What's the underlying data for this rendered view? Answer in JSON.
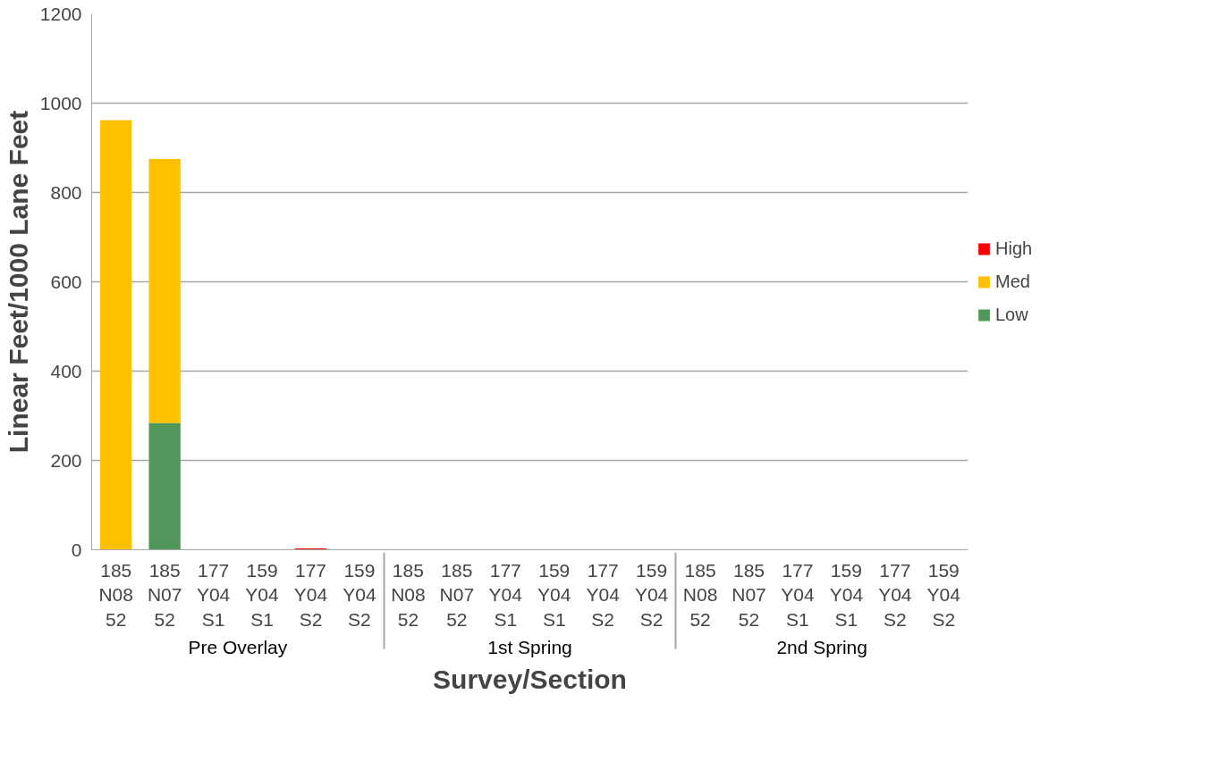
{
  "chart_data": {
    "type": "bar",
    "stacked": true,
    "xlabel": "Survey/Section",
    "ylabel": "Linear Feet/1000 Lane Feet",
    "categories": [
      "185 N08 52",
      "185 N07 52",
      "177 Y04 S1",
      "159 Y04 S1",
      "177 Y04 S2",
      "159 Y04 S2",
      "185 N08 52",
      "185 N07 52",
      "177 Y04 S1",
      "159 Y04 S1",
      "177 Y04 S2",
      "159 Y04 S2",
      "185 N08 52",
      "185 N07 52",
      "177 Y04 S1",
      "159 Y04 S1",
      "177 Y04 S2",
      "159 Y04 S2"
    ],
    "annotations": [
      "Pre Overlay",
      "1st Spring",
      "2nd Spring"
    ],
    "series": [
      {
        "name": "Low",
        "color": "#52975a",
        "values": [
          0,
          284,
          0,
          0,
          0,
          0,
          0,
          0,
          0,
          0,
          0,
          0,
          0,
          0,
          0,
          0,
          0,
          0
        ]
      },
      {
        "name": "Med",
        "color": "#ffc000",
        "values": [
          962,
          591,
          0,
          0,
          0,
          0,
          0,
          0,
          0,
          0,
          0,
          0,
          0,
          0,
          0,
          0,
          0,
          0
        ]
      },
      {
        "name": "High",
        "color": "#ff0000",
        "values": [
          0,
          0,
          0,
          0,
          3,
          0,
          0,
          0,
          0,
          0,
          0,
          0,
          0,
          0,
          0,
          0,
          0,
          0
        ]
      }
    ],
    "ylim": [
      0,
      1200
    ],
    "yticks": [
      0,
      200,
      400,
      600,
      800,
      1000,
      1200
    ],
    "grid": "y",
    "legend": "right"
  }
}
